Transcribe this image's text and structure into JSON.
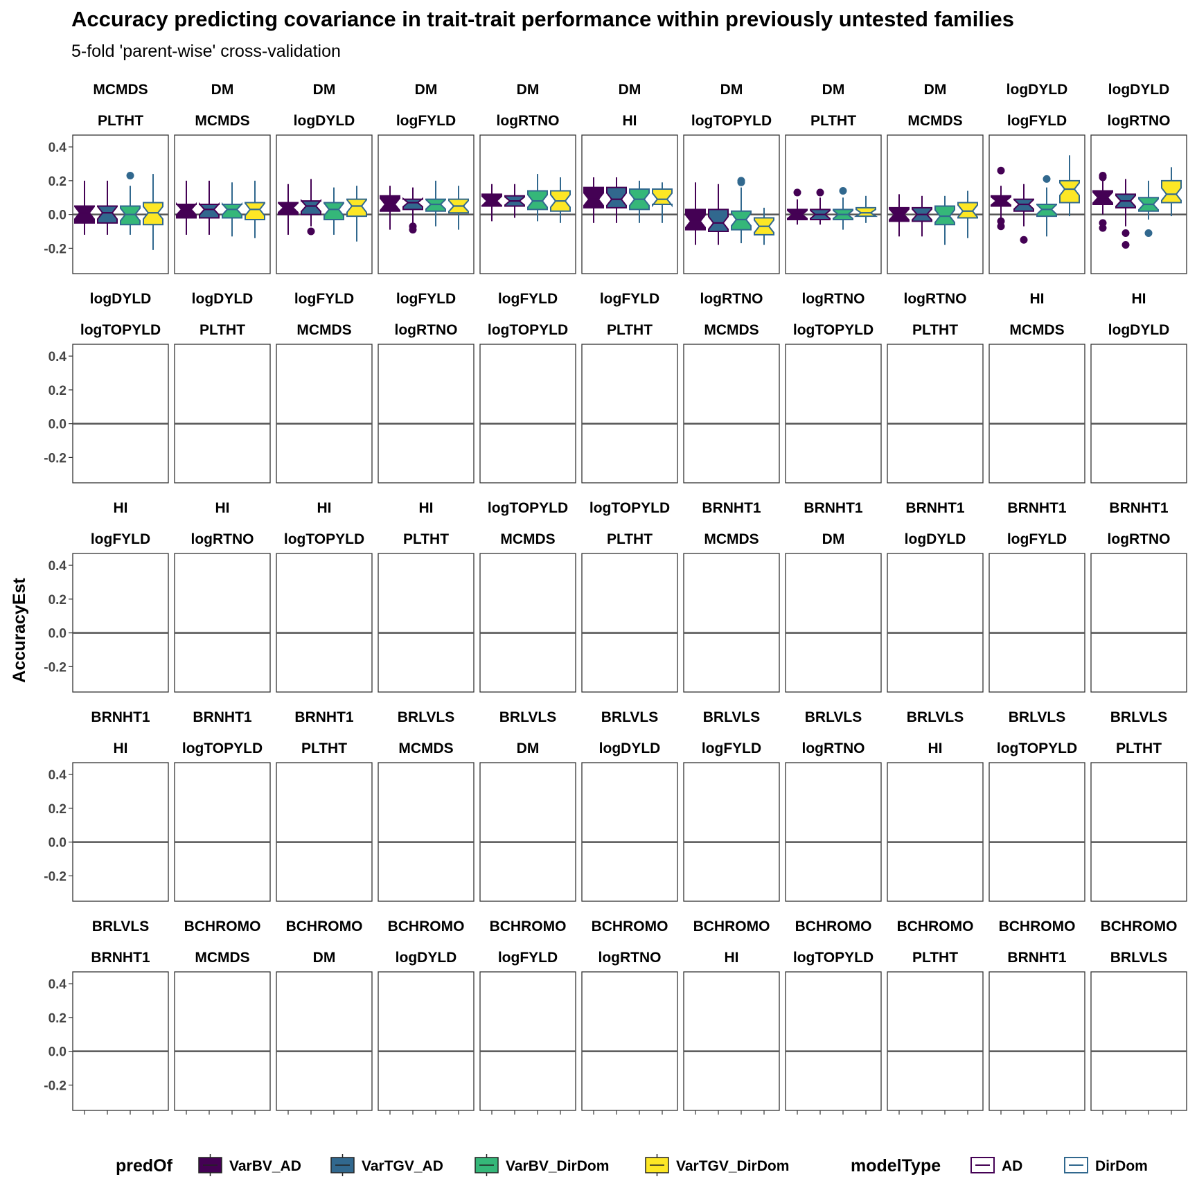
{
  "chart_data": {
    "type": "boxplot",
    "title": "Accuracy predicting covariance in trait-trait performance within previously untested families",
    "subtitle": "5-fold 'parent-wise' cross-validation",
    "ylabel": "AccuracyEst",
    "xlabel": "",
    "ylim": [
      -0.35,
      0.47
    ],
    "yticks": [
      0.4,
      0.2,
      0.0,
      -0.2
    ],
    "ytick_labels": [
      "0.4",
      "0.2",
      "0.0",
      "-0.2"
    ],
    "reference_line": 0,
    "layout": {
      "rows": 5,
      "cols": 11
    },
    "legend": {
      "position": "bottom",
      "predOf": {
        "title": "predOf",
        "items": [
          {
            "label": "VarBV_AD",
            "fill": "#440154"
          },
          {
            "label": "VarTGV_AD",
            "fill": "#31688e"
          },
          {
            "label": "VarBV_DirDom",
            "fill": "#35b779"
          },
          {
            "label": "VarTGV_DirDom",
            "fill": "#fde725"
          }
        ]
      },
      "modelType": {
        "title": "modelType",
        "items": [
          {
            "label": "AD",
            "stroke": "#440154"
          },
          {
            "label": "DirDom",
            "stroke": "#31688e"
          }
        ]
      }
    },
    "box_order": [
      "VarBV_AD/AD",
      "VarTGV_AD/AD",
      "VarBV_DirDom/DirDom",
      "VarTGV_DirDom/DirDom"
    ],
    "boxes_format": "[q1, median, q3, whisker_low, whisker_high, [outliers]]",
    "panels": [
      {
        "t1": "MCMDS",
        "t2": "PLTHT",
        "boxes": [
          [
            -0.05,
            0.01,
            0.05,
            -0.12,
            0.2,
            []
          ],
          [
            -0.05,
            0.01,
            0.05,
            -0.12,
            0.2,
            []
          ],
          [
            -0.06,
            0,
            0.05,
            -0.12,
            0.17,
            [
              0.23
            ]
          ],
          [
            -0.06,
            0.01,
            0.07,
            -0.21,
            0.24,
            []
          ]
        ]
      },
      {
        "t1": "DM",
        "t2": "MCMDS",
        "boxes": [
          [
            -0.02,
            0.03,
            0.06,
            -0.12,
            0.2,
            []
          ],
          [
            -0.02,
            0.03,
            0.06,
            -0.12,
            0.2,
            []
          ],
          [
            -0.02,
            0.03,
            0.06,
            -0.13,
            0.19,
            []
          ],
          [
            -0.03,
            0.03,
            0.07,
            -0.14,
            0.2,
            []
          ]
        ]
      },
      {
        "t1": "DM",
        "t2": "logDYLD",
        "boxes": [
          [
            0,
            0.04,
            0.07,
            -0.12,
            0.18,
            []
          ],
          [
            0,
            0.05,
            0.08,
            -0.07,
            0.21,
            [
              -0.1
            ]
          ],
          [
            -0.03,
            0.03,
            0.07,
            -0.12,
            0.16,
            []
          ],
          [
            -0.01,
            0.05,
            0.09,
            -0.16,
            0.17,
            []
          ]
        ]
      },
      {
        "t1": "DM",
        "t2": "logFYLD",
        "boxes": [
          [
            0.02,
            0.06,
            0.11,
            -0.09,
            0.17,
            []
          ],
          [
            0.03,
            0.07,
            0.09,
            -0.05,
            0.16,
            [
              -0.07,
              -0.09
            ]
          ],
          [
            0.02,
            0.06,
            0.09,
            -0.07,
            0.2,
            []
          ],
          [
            0.01,
            0.05,
            0.09,
            -0.09,
            0.17,
            []
          ]
        ]
      },
      {
        "t1": "DM",
        "t2": "logRTNO",
        "boxes": [
          [
            0.05,
            0.08,
            0.12,
            -0.04,
            0.18,
            []
          ],
          [
            0.05,
            0.08,
            0.11,
            -0.02,
            0.18,
            []
          ],
          [
            0.03,
            0.08,
            0.14,
            -0.04,
            0.24,
            []
          ],
          [
            0.02,
            0.08,
            0.14,
            -0.05,
            0.22,
            []
          ]
        ]
      },
      {
        "t1": "DM",
        "t2": "HI",
        "boxes": [
          [
            0.04,
            0.09,
            0.16,
            -0.05,
            0.22,
            []
          ],
          [
            0.04,
            0.09,
            0.16,
            -0.05,
            0.22,
            []
          ],
          [
            0.03,
            0.09,
            0.15,
            -0.05,
            0.2,
            []
          ],
          [
            0.06,
            0.09,
            0.15,
            -0.05,
            0.19,
            []
          ]
        ]
      },
      {
        "t1": "DM",
        "t2": "logTOPYLD",
        "boxes": [
          [
            -0.09,
            -0.04,
            0.03,
            -0.18,
            0.19,
            []
          ],
          [
            -0.1,
            -0.05,
            0.03,
            -0.18,
            0.18,
            []
          ],
          [
            -0.09,
            -0.03,
            0.02,
            -0.17,
            0.16,
            [
              0.2,
              0.19
            ]
          ],
          [
            -0.12,
            -0.07,
            -0.02,
            -0.18,
            0.04,
            []
          ]
        ]
      },
      {
        "t1": "DM",
        "t2": "PLTHT",
        "boxes": [
          [
            -0.03,
            0,
            0.03,
            -0.06,
            0.09,
            [
              0.13
            ]
          ],
          [
            -0.03,
            0,
            0.03,
            -0.06,
            0.1,
            [
              0.13
            ]
          ],
          [
            -0.03,
            0,
            0.03,
            -0.09,
            0.1,
            [
              0.14
            ]
          ],
          [
            -0.01,
            0.01,
            0.04,
            -0.05,
            0.11,
            []
          ]
        ]
      },
      {
        "t1": "DM",
        "t2": "MCMDS",
        "boxes": [
          [
            -0.04,
            0,
            0.04,
            -0.13,
            0.12,
            []
          ],
          [
            -0.04,
            0,
            0.04,
            -0.13,
            0.11,
            []
          ],
          [
            -0.06,
            -0.01,
            0.05,
            -0.18,
            0.11,
            []
          ],
          [
            -0.02,
            0.02,
            0.07,
            -0.14,
            0.14,
            []
          ]
        ]
      },
      {
        "t1": "logDYLD",
        "t2": "logFYLD",
        "boxes": [
          [
            0.05,
            0.08,
            0.11,
            -0.03,
            0.17,
            [
              0.26,
              -0.04,
              -0.07
            ]
          ],
          [
            0.02,
            0.06,
            0.09,
            -0.07,
            0.18,
            [
              -0.15
            ]
          ],
          [
            -0.01,
            0.03,
            0.06,
            -0.13,
            0.16,
            [
              0.21
            ]
          ],
          [
            0.07,
            0.15,
            0.2,
            -0.01,
            0.35,
            []
          ]
        ]
      },
      {
        "t1": "logDYLD",
        "t2": "logRTNO",
        "boxes": [
          [
            0.06,
            0.1,
            0.14,
            0,
            0.2,
            [
              0.23,
              0.22,
              -0.05,
              -0.08
            ]
          ],
          [
            0.04,
            0.08,
            0.12,
            -0.07,
            0.21,
            [
              -0.11,
              -0.18
            ]
          ],
          [
            0.02,
            0.06,
            0.1,
            -0.03,
            0.2,
            [
              -0.11
            ]
          ],
          [
            0.07,
            0.12,
            0.2,
            -0.01,
            0.28,
            []
          ]
        ]
      }
    ]
  }
}
